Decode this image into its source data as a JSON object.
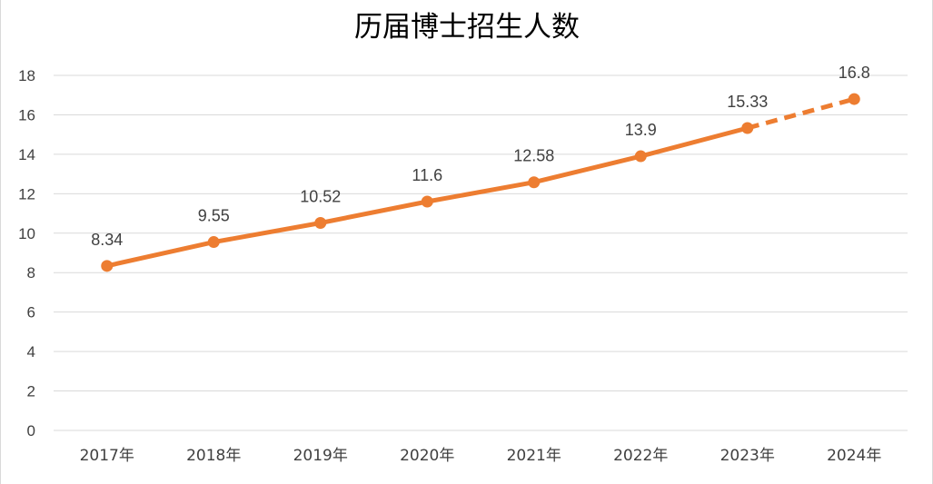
{
  "chart_data": {
    "type": "line",
    "title": "历届博士招生人数",
    "xlabel": "",
    "ylabel": "",
    "categories": [
      "2017年",
      "2018年",
      "2019年",
      "2020年",
      "2021年",
      "2022年",
      "2023年",
      "2024年"
    ],
    "series": [
      {
        "values": [
          8.34,
          9.55,
          10.52,
          11.6,
          12.58,
          13.9,
          15.33,
          16.8
        ],
        "data_labels": [
          "8.34",
          "9.55",
          "10.52",
          "11.6",
          "12.58",
          "13.9",
          "15.33",
          "16.8"
        ],
        "color": "#ED7D31",
        "dashed_from_index": 6
      }
    ],
    "ylim": [
      0,
      18
    ],
    "yticks": [
      0,
      2,
      4,
      6,
      8,
      10,
      12,
      14,
      16,
      18
    ],
    "ytick_labels": [
      "0",
      "2",
      "4",
      "6",
      "8",
      "10",
      "12",
      "14",
      "16",
      "18"
    ],
    "grid": true,
    "legend": "none",
    "gridline_color": "#d9d9d9"
  }
}
